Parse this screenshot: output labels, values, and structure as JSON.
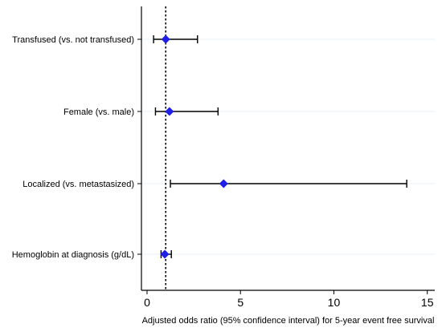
{
  "chart_data": {
    "type": "scatter",
    "subtype": "forest-plot",
    "xlabel": "Adjusted odds ratio (95% confidence interval) for 5-year event free survival",
    "ylabel": "",
    "xlim": [
      -0.3,
      15.4
    ],
    "x_ticks": [
      0,
      5,
      10,
      15
    ],
    "reference_line": 1,
    "grid": "horizontal",
    "legend": "none",
    "rows": [
      {
        "label": "Transfused (vs. not transfused)",
        "estimate": 1.0,
        "ci_low": 0.35,
        "ci_high": 2.7
      },
      {
        "label": "Female (vs. male)",
        "estimate": 1.2,
        "ci_low": 0.45,
        "ci_high": 3.8
      },
      {
        "label": "Localized (vs. metastasized)",
        "estimate": 4.1,
        "ci_low": 1.25,
        "ci_high": 13.9
      },
      {
        "label": "Hemoglobin at diagnosis (g/dL)",
        "estimate": 0.95,
        "ci_low": 0.75,
        "ci_high": 1.3
      }
    ],
    "colors": {
      "marker": "#1f1fe6",
      "interval": "#000000",
      "reference_line": "#000000",
      "grid": "#e9f0f4"
    }
  }
}
